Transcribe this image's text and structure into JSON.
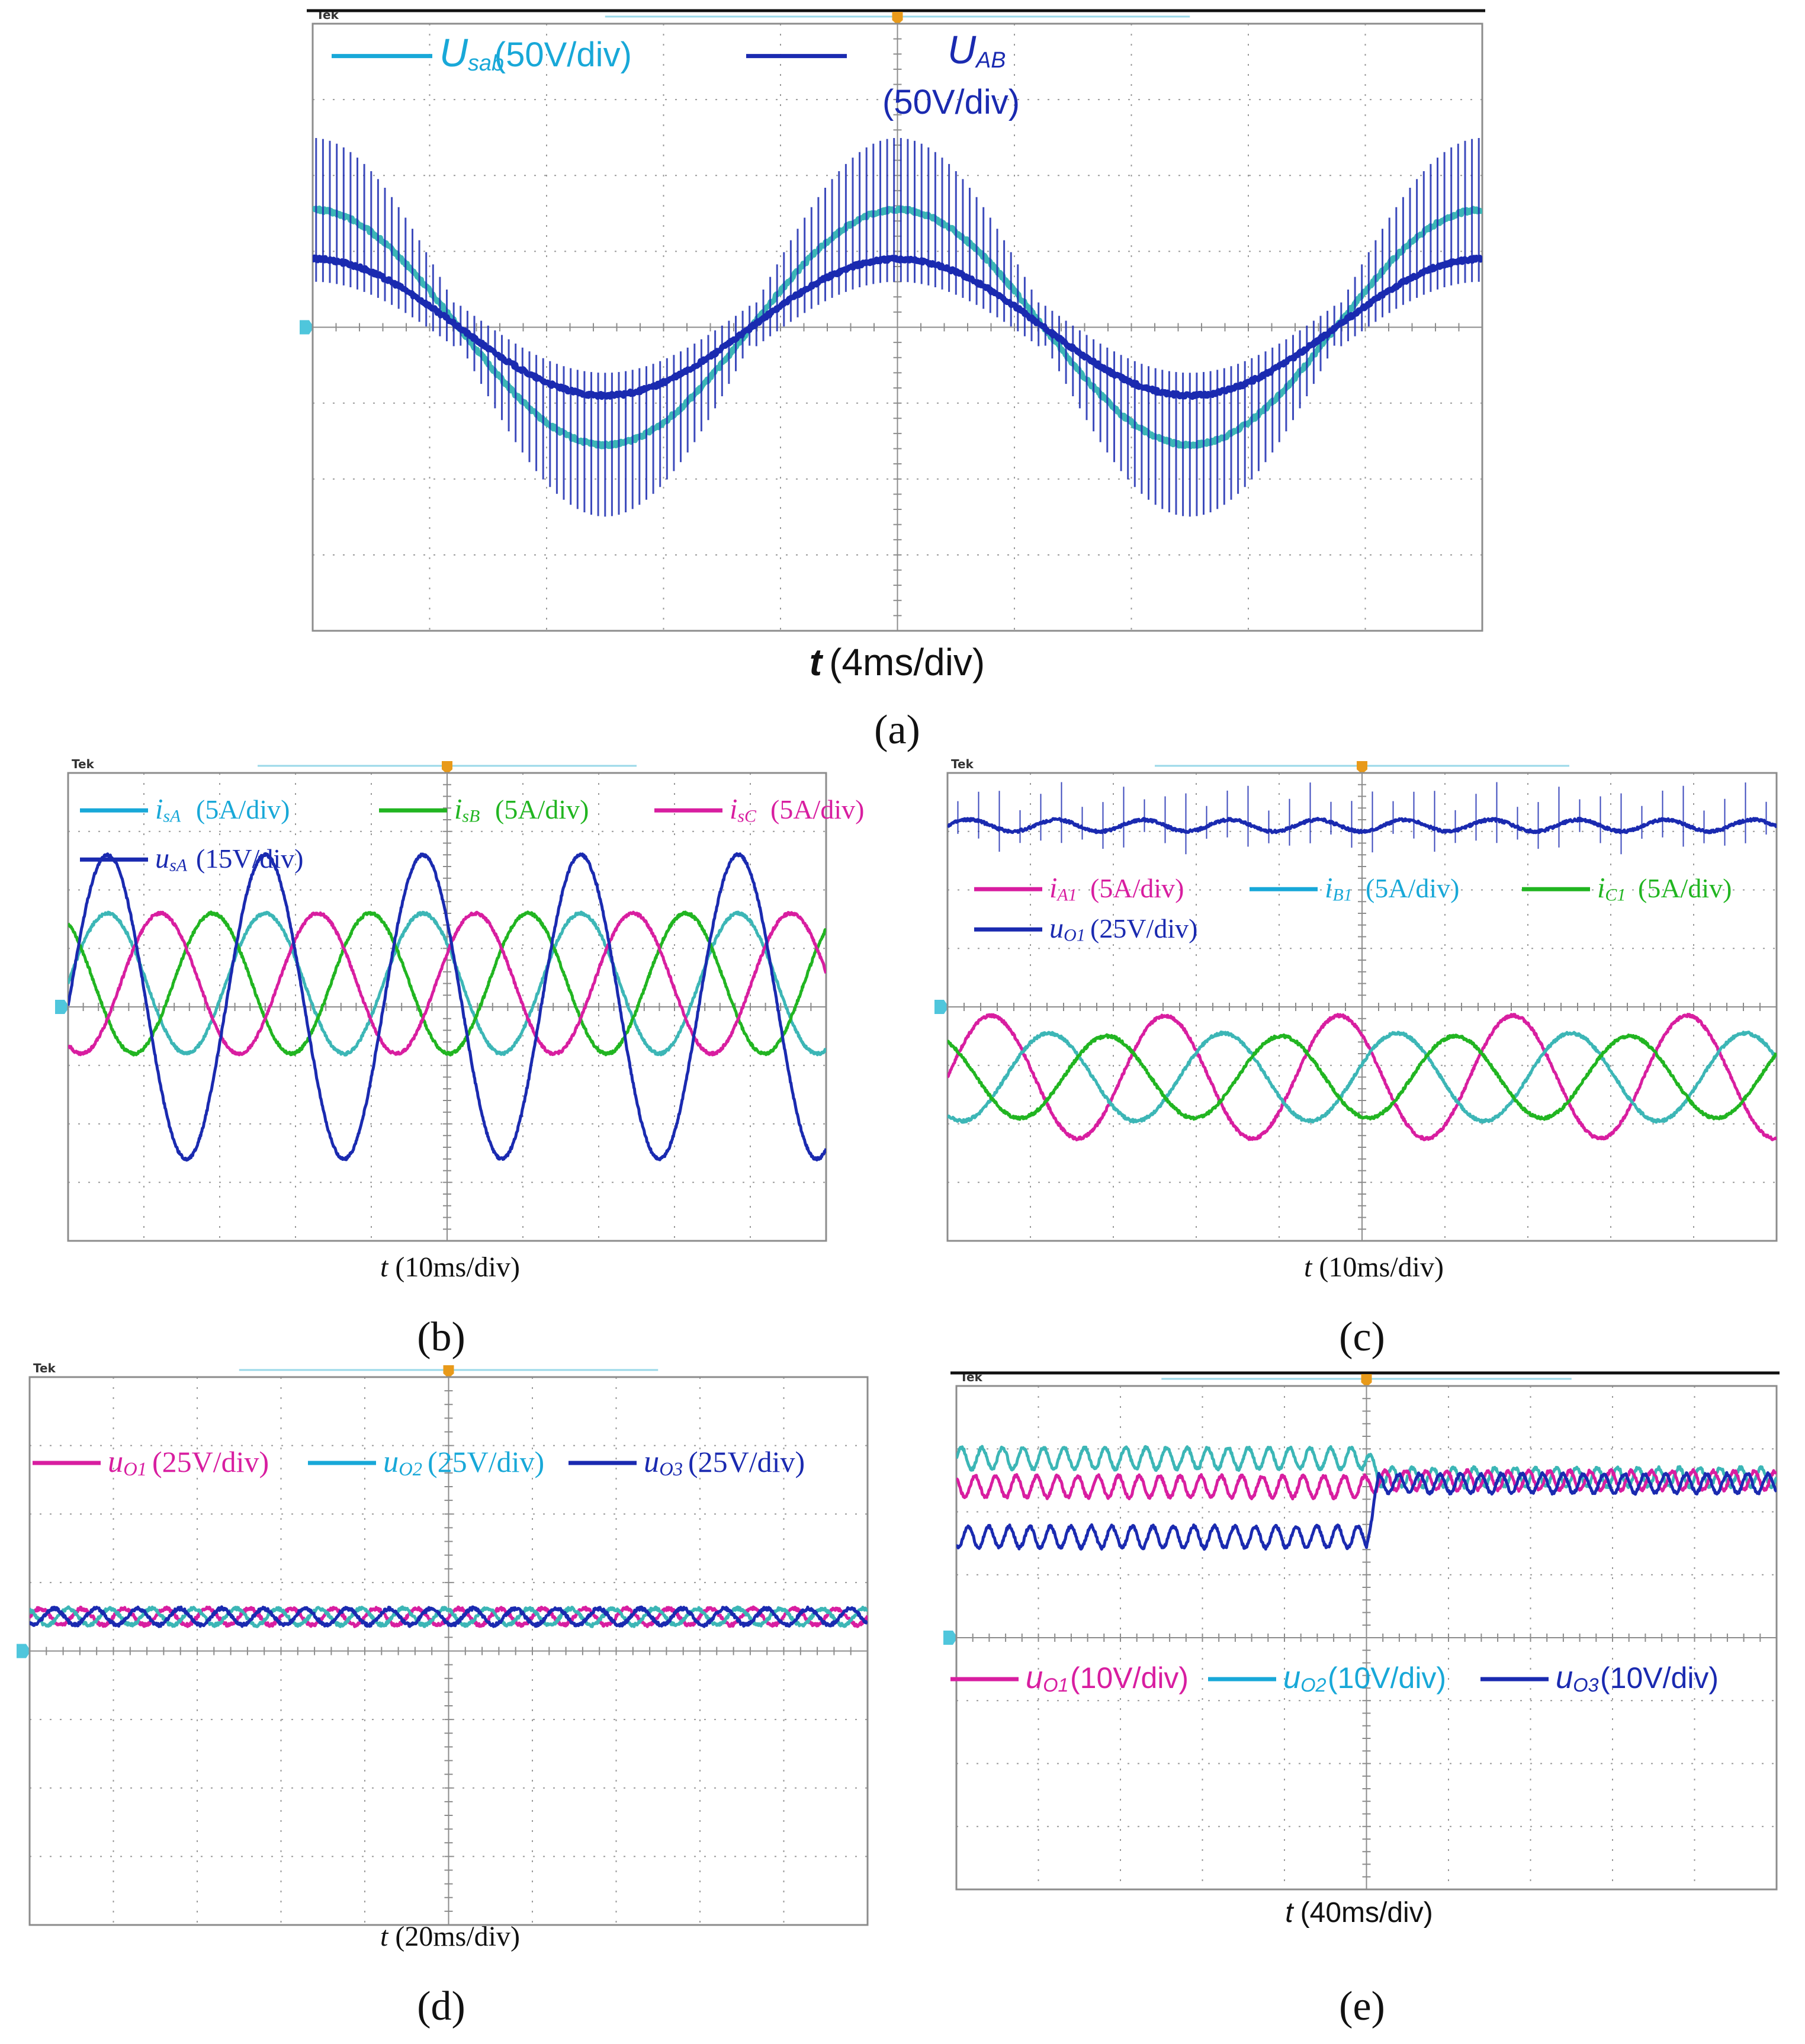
{
  "colors": {
    "cyan": "#18a8d8",
    "teal": "#3cb6b6",
    "blue": "#1a2ab0",
    "green": "#21b521",
    "magenta": "#d81ea0"
  },
  "scope_brand": "Tek",
  "chart_data": [
    {
      "id": "a",
      "type": "line",
      "panel_label": "(a)",
      "time_axis": {
        "var": "t",
        "unit": "(4ms/div)"
      },
      "x_divisions": 10,
      "y_divisions": 8,
      "legend": [
        {
          "name": "U",
          "sub": "sab",
          "scale": "(50V/div)",
          "color": "cyan"
        },
        {
          "name": "U",
          "sub": "AB",
          "scale": "(50V/div)",
          "color": "blue"
        }
      ],
      "series": [
        {
          "name": "Usab",
          "color": "teal",
          "amplitude_div": 1.55,
          "period_div": 5,
          "phase_deg": 90,
          "offset_div": 0
        },
        {
          "name": "UAB",
          "color": "blue",
          "amplitude_div": 0.9,
          "period_div": 5,
          "phase_deg": 90,
          "offset_div": 0,
          "pwm_spikes": true
        }
      ]
    },
    {
      "id": "b",
      "type": "line",
      "panel_label": "(b)",
      "time_axis": {
        "var": "t",
        "unit": "(10ms/div)"
      },
      "x_divisions": 10,
      "y_divisions": 8,
      "legend": [
        {
          "name": "i",
          "sub": "sA",
          "scale": "(5A/div)",
          "color": "cyan"
        },
        {
          "name": "i",
          "sub": "sB",
          "scale": "(5A/div)",
          "color": "green"
        },
        {
          "name": "i",
          "sub": "sC",
          "scale": "(5A/div)",
          "color": "magenta"
        },
        {
          "name": "u",
          "sub": "sA",
          "scale": "(15V/div)",
          "color": "blue"
        }
      ],
      "series": [
        {
          "name": "isA",
          "color": "teal",
          "amplitude_div": 1.2,
          "period_div": 2.08,
          "phase_deg": 0,
          "offset_div": 0.4
        },
        {
          "name": "isB",
          "color": "green",
          "amplitude_div": 1.2,
          "period_div": 2.08,
          "phase_deg": 120,
          "offset_div": 0.4
        },
        {
          "name": "isC",
          "color": "magenta",
          "amplitude_div": 1.2,
          "period_div": 2.08,
          "phase_deg": 240,
          "offset_div": 0.4
        },
        {
          "name": "usA",
          "color": "blue",
          "amplitude_div": 2.6,
          "period_div": 2.08,
          "phase_deg": 0,
          "offset_div": 0
        }
      ]
    },
    {
      "id": "c",
      "type": "line",
      "panel_label": "(c)",
      "time_axis": {
        "var": "t",
        "unit": "(10ms/div)"
      },
      "x_divisions": 10,
      "y_divisions": 8,
      "legend": [
        {
          "name": "i",
          "sub": "A1",
          "scale": "(5A/div)",
          "color": "magenta"
        },
        {
          "name": "i",
          "sub": "B1",
          "scale": "(5A/div)",
          "color": "cyan"
        },
        {
          "name": "i",
          "sub": "C1",
          "scale": "(5A/div)",
          "color": "green"
        },
        {
          "name": "u",
          "sub": "O1",
          "scale": "(25V/div)",
          "color": "blue"
        }
      ],
      "series": [
        {
          "name": "uO1",
          "color": "blue",
          "amplitude_div": 0.1,
          "period_div": 1.05,
          "phase_deg": 0,
          "offset_div": 3.1,
          "pwm_spikes": true
        },
        {
          "name": "iA1",
          "color": "magenta",
          "amplitude_div": 1.05,
          "period_div": 2.1,
          "phase_deg": 0,
          "offset_div": -1.2
        },
        {
          "name": "iB1",
          "color": "teal",
          "amplitude_div": 0.75,
          "period_div": 2.1,
          "phase_deg": 240,
          "offset_div": -1.2
        },
        {
          "name": "iC1",
          "color": "green",
          "amplitude_div": 0.7,
          "period_div": 2.1,
          "phase_deg": 120,
          "offset_div": -1.2
        }
      ]
    },
    {
      "id": "d",
      "type": "line",
      "panel_label": "(d)",
      "time_axis": {
        "var": "t",
        "unit": "(20ms/div)"
      },
      "x_divisions": 10,
      "y_divisions": 8,
      "legend": [
        {
          "name": "u",
          "sub": "O1",
          "scale": "(25V/div)",
          "color": "magenta"
        },
        {
          "name": "u",
          "sub": "O2",
          "scale": "(25V/div)",
          "color": "cyan"
        },
        {
          "name": "u",
          "sub": "O3",
          "scale": "(25V/div)",
          "color": "blue"
        }
      ],
      "series": [
        {
          "name": "uO1",
          "color": "magenta",
          "amplitude_div": 0.12,
          "period_div": 0.5,
          "phase_deg": 0,
          "offset_div": 0.5
        },
        {
          "name": "uO2",
          "color": "teal",
          "amplitude_div": 0.12,
          "period_div": 0.5,
          "phase_deg": 120,
          "offset_div": 0.5
        },
        {
          "name": "uO3",
          "color": "blue",
          "amplitude_div": 0.12,
          "period_div": 0.5,
          "phase_deg": 240,
          "offset_div": 0.5
        }
      ]
    },
    {
      "id": "e",
      "type": "line",
      "panel_label": "(e)",
      "time_axis": {
        "var": "t",
        "unit": "(40ms/div)"
      },
      "x_divisions": 10,
      "y_divisions": 8,
      "legend": [
        {
          "name": "u",
          "sub": "O1",
          "scale": "(10V/div)",
          "color": "magenta"
        },
        {
          "name": "u",
          "sub": "O2",
          "scale": "(10V/div)",
          "color": "cyan"
        },
        {
          "name": "u",
          "sub": "O3",
          "scale": "(10V/div)",
          "color": "blue"
        }
      ],
      "step_at_div": 5,
      "series": [
        {
          "name": "uO2",
          "color": "teal",
          "amplitude_div": 0.17,
          "period_div": 0.25,
          "phase_deg": 0,
          "offset_div": 2.85,
          "after_offset_div": 2.55,
          "after_amplitude_div": 0.15
        },
        {
          "name": "uO1",
          "color": "magenta",
          "amplitude_div": 0.17,
          "period_div": 0.25,
          "phase_deg": 120,
          "offset_div": 2.4,
          "after_offset_div": 2.5,
          "after_amplitude_div": 0.15
        },
        {
          "name": "uO3",
          "color": "blue",
          "amplitude_div": 0.17,
          "period_div": 0.25,
          "phase_deg": 240,
          "offset_div": 1.6,
          "after_offset_div": 2.45,
          "after_amplitude_div": 0.15
        }
      ]
    }
  ]
}
